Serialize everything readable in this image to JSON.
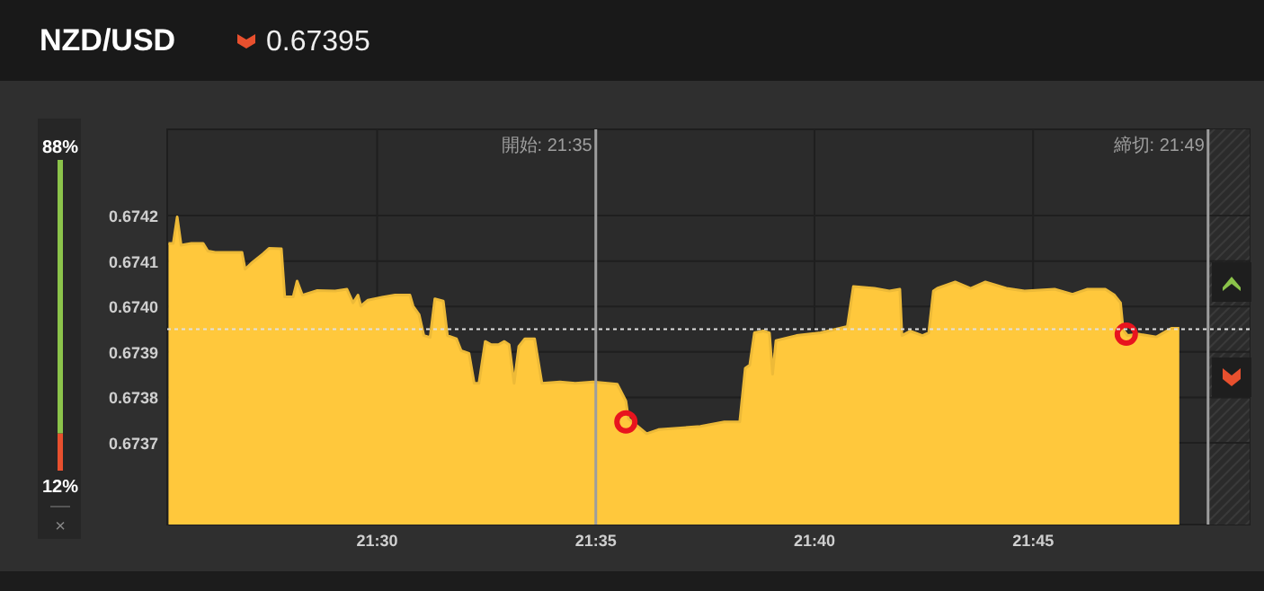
{
  "chart_data": [
    {
      "type": "area",
      "title": "NZD/USD",
      "subtitle": "0.67395",
      "xlim": [
        21.42,
        21.8325
      ],
      "ylim": [
        0.67352,
        0.67439
      ],
      "xticks": [
        {
          "value": 21.5,
          "label": "21:30"
        },
        {
          "value": 21.583333,
          "label": "21:35"
        },
        {
          "value": 21.666667,
          "label": "21:40"
        },
        {
          "value": 21.75,
          "label": "21:45"
        }
      ],
      "yticks": [
        0.6737,
        0.6738,
        0.6739,
        {
          "value": 0.674,
          "label": "0.6740"
        },
        0.6741,
        0.6742
      ],
      "grid": true,
      "ref_lines": [
        {
          "axis": "y",
          "value": 0.67395,
          "color": "#e0e0e0",
          "line_style": "dotted"
        },
        {
          "axis": "x",
          "value": 21.583333,
          "color": "#9e9e9e"
        },
        {
          "axis": "x",
          "value": 21.816667,
          "color": "#9e9e9e"
        }
      ],
      "annotations": [
        "開始: 21:35",
        "締切: 21:49"
      ],
      "bands": [
        {
          "axis": "x",
          "from": 21.816667,
          "to": 21.8325,
          "color": "#3a3a3a"
        }
      ],
      "series": [
        {
          "type": "area",
          "color": "#ffc83c",
          "x": [
            21.4205,
            21.4223,
            21.4238,
            21.4253,
            21.4292,
            21.4337,
            21.4355,
            21.4383,
            21.4485,
            21.4497,
            21.452,
            21.4565,
            21.4588,
            21.4635,
            21.4648,
            21.468,
            21.4695,
            21.4715,
            21.4772,
            21.484,
            21.4885,
            21.4908,
            21.4927,
            21.4938,
            21.4965,
            21.5023,
            21.5068,
            21.5125,
            21.5137,
            21.516,
            21.5178,
            21.5202,
            21.522,
            21.5252,
            21.5268,
            21.5302,
            21.532,
            21.535,
            21.537,
            21.5388,
            21.5412,
            21.5435,
            21.5462,
            21.5485,
            21.5503,
            21.5522,
            21.554,
            21.5563,
            21.56,
            21.5628,
            21.5697,
            21.5755,
            21.5823,
            21.5915,
            21.5948,
            21.5958,
            21.6027,
            21.6072,
            21.6232,
            21.6323,
            21.6382,
            21.6403,
            21.642,
            21.6438,
            21.6472,
            21.6495,
            21.6507,
            21.652,
            21.6598,
            21.669,
            21.6792,
            21.6815,
            21.6895,
            21.6952,
            21.6992,
            21.7,
            21.7032,
            21.7078,
            21.7102,
            21.712,
            21.7135,
            21.7203,
            21.7262,
            21.7318,
            21.7398,
            21.7467,
            21.7582,
            21.765,
            21.7707,
            21.7775,
            21.781,
            21.7833,
            21.7843,
            21.786,
            21.7902,
            21.797,
            21.8027,
            21.8057
          ],
          "values": [
            0.674139,
            0.674139,
            0.674197,
            0.674135,
            0.674139,
            0.674139,
            0.674122,
            0.674119,
            0.674119,
            0.674082,
            0.674095,
            0.674116,
            0.674128,
            0.674127,
            0.674021,
            0.674021,
            0.674056,
            0.674025,
            0.674035,
            0.674034,
            0.674038,
            0.674008,
            0.674025,
            0.674001,
            0.674014,
            0.674021,
            0.674025,
            0.674025,
            0.674001,
            0.673982,
            0.673936,
            0.673932,
            0.674017,
            0.674012,
            0.673936,
            0.673929,
            0.673903,
            0.673897,
            0.673831,
            0.673831,
            0.673923,
            0.673916,
            0.673916,
            0.673923,
            0.673916,
            0.673831,
            0.673912,
            0.673929,
            0.673929,
            0.673831,
            0.673834,
            0.673831,
            0.673834,
            0.673829,
            0.673792,
            0.673753,
            0.67372,
            0.673729,
            0.673736,
            0.673746,
            0.673746,
            0.673864,
            0.673871,
            0.673942,
            0.673946,
            0.673942,
            0.673851,
            0.673925,
            0.673936,
            0.673942,
            0.673956,
            0.674044,
            0.67404,
            0.674034,
            0.674038,
            0.673936,
            0.673946,
            0.673936,
            0.673942,
            0.674034,
            0.67404,
            0.674054,
            0.67404,
            0.674054,
            0.67404,
            0.674034,
            0.674038,
            0.674027,
            0.674038,
            0.674038,
            0.674025,
            0.674008,
            0.673949,
            0.673936,
            0.673939,
            0.673933,
            0.673952,
            0.673952
          ]
        },
        {
          "type": "scatter",
          "marker": "circle",
          "color": "#e8141e",
          "x": [
            21.5948,
            21.7855
          ],
          "values": [
            0.673746,
            0.673939
          ]
        }
      ]
    },
    {
      "type": "bar",
      "stacked": true,
      "categories": [
        null
      ],
      "annotations": [
        "×"
      ],
      "series": [
        {
          "color": "#e8502e",
          "values": [
            12
          ],
          "value_labels": [
            "12%"
          ]
        },
        {
          "color": "#8bc34a",
          "values": [
            88
          ],
          "value_labels": [
            "88%"
          ]
        }
      ]
    }
  ]
}
